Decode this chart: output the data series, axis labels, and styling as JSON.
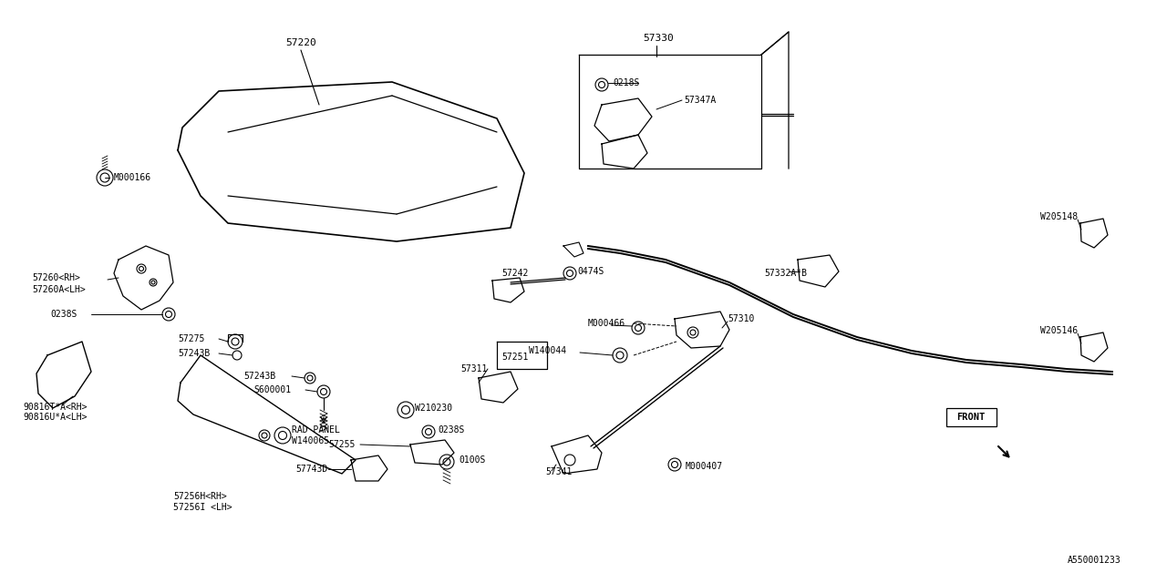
{
  "bg_color": "#ffffff",
  "line_color": "#000000",
  "text_color": "#000000",
  "font_family": "monospace",
  "diagram_code": "A550001233",
  "figsize": [
    12.8,
    6.4
  ],
  "dpi": 100,
  "xlim": [
    0,
    1280
  ],
  "ylim": [
    0,
    640
  ]
}
